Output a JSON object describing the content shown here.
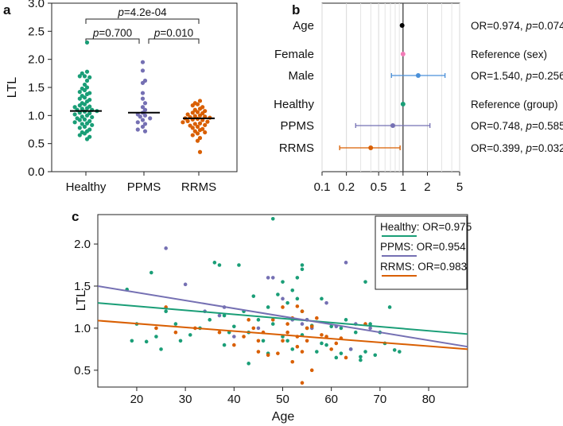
{
  "colors": {
    "healthy": "#1a9e77",
    "ppms": "#7570b3",
    "rrms": "#d95f02",
    "female": "#f27bb7",
    "male": "#4a90d9",
    "black": "#000000"
  },
  "chart_data": [
    {
      "panel": "a",
      "type": "scatter",
      "ylabel": "LTL",
      "ylim": [
        0,
        3.0
      ],
      "yticks": [
        "0.0",
        "0.5",
        "1.0",
        "1.5",
        "2.0",
        "2.5",
        "3.0"
      ],
      "categories": [
        "Healthy",
        "PPMS",
        "RRMS"
      ],
      "medians": [
        1.08,
        1.05,
        0.95
      ],
      "annotations": [
        {
          "between": [
            "Healthy",
            "RRMS"
          ],
          "p_prefix": "p",
          "p_value": "=4.2e-04"
        },
        {
          "between": [
            "Healthy",
            "PPMS"
          ],
          "p_prefix": "p",
          "p_value": "=0.700"
        },
        {
          "between": [
            "PPMS",
            "RRMS"
          ],
          "p_prefix": "p",
          "p_value": "=0.010"
        }
      ],
      "series": [
        {
          "name": "Healthy",
          "values": [
            2.3,
            1.78,
            1.75,
            1.7,
            1.7,
            1.68,
            1.62,
            1.55,
            1.5,
            1.48,
            1.45,
            1.42,
            1.4,
            1.38,
            1.35,
            1.32,
            1.3,
            1.28,
            1.25,
            1.22,
            1.2,
            1.18,
            1.16,
            1.15,
            1.13,
            1.12,
            1.1,
            1.1,
            1.08,
            1.07,
            1.05,
            1.04,
            1.02,
            1.0,
            0.98,
            0.97,
            0.95,
            0.93,
            0.92,
            0.9,
            0.88,
            0.86,
            0.85,
            0.83,
            0.8,
            0.78,
            0.75,
            0.72,
            0.7,
            0.68,
            0.65,
            0.62,
            0.58
          ]
        },
        {
          "name": "PPMS",
          "values": [
            1.95,
            1.8,
            1.62,
            1.58,
            1.4,
            1.3,
            1.22,
            1.15,
            1.1,
            1.05,
            1.02,
            1.0,
            0.98,
            0.95,
            0.92,
            0.88,
            0.85,
            0.8,
            0.75,
            0.72
          ]
        },
        {
          "name": "RRMS",
          "values": [
            1.26,
            1.22,
            1.2,
            1.18,
            1.15,
            1.12,
            1.1,
            1.08,
            1.06,
            1.05,
            1.04,
            1.02,
            1.0,
            0.99,
            0.98,
            0.97,
            0.96,
            0.95,
            0.94,
            0.93,
            0.92,
            0.9,
            0.89,
            0.88,
            0.86,
            0.85,
            0.83,
            0.82,
            0.8,
            0.78,
            0.76,
            0.74,
            0.72,
            0.7,
            0.68,
            0.65,
            0.6,
            0.55,
            0.35
          ]
        }
      ]
    },
    {
      "panel": "b",
      "type": "forest",
      "xscale": "log",
      "xlim": [
        0.1,
        5
      ],
      "xticks": [
        0.1,
        0.2,
        0.5,
        1,
        2,
        5
      ],
      "xtick_labels": [
        "0.1",
        "0.2",
        "0.5",
        "1",
        "2",
        "5"
      ],
      "reference_line": 1,
      "rows": [
        {
          "label": "Age",
          "or": 0.974,
          "lo": 0.974,
          "hi": 0.974,
          "color_key": "black",
          "text_prefix": "OR=0.974, ",
          "p_prefix": "p",
          "p_value": "=0.074"
        },
        {
          "label": "Female",
          "or": 1.0,
          "lo": 1.0,
          "hi": 1.0,
          "color_key": "female",
          "text": "Reference (sex)"
        },
        {
          "label": "Male",
          "or": 1.54,
          "lo": 0.72,
          "hi": 3.3,
          "color_key": "male",
          "text_prefix": "OR=1.540, ",
          "p_prefix": "p",
          "p_value": "=0.256"
        },
        {
          "label": "Healthy",
          "or": 1.0,
          "lo": 1.0,
          "hi": 1.0,
          "color_key": "healthy",
          "text": "Reference (group)"
        },
        {
          "label": "PPMS",
          "or": 0.748,
          "lo": 0.26,
          "hi": 2.15,
          "color_key": "ppms",
          "text_prefix": "OR=0.748, ",
          "p_prefix": "p",
          "p_value": "=0.585"
        },
        {
          "label": "RRMS",
          "or": 0.399,
          "lo": 0.165,
          "hi": 0.92,
          "color_key": "rrms",
          "text_prefix": "OR=0.399, ",
          "p_prefix": "p",
          "p_value": "=0.032"
        }
      ]
    },
    {
      "panel": "c",
      "type": "scatter",
      "xlabel": "Age",
      "ylabel": "LTL",
      "xlim": [
        12,
        88
      ],
      "ylim": [
        0.3,
        2.35
      ],
      "xticks": [
        20,
        30,
        40,
        50,
        60,
        70,
        80
      ],
      "yticks": [
        0.5,
        1.0,
        1.5,
        2.0
      ],
      "ytick_labels": [
        "0.5",
        "1.0",
        "1.5",
        "2.0"
      ],
      "legend": [
        {
          "name": "Healthy",
          "text": ": OR=0.975"
        },
        {
          "name": "PPMS",
          "text": ": OR=0.954"
        },
        {
          "name": "RRMS",
          "text": ": OR=0.983"
        }
      ],
      "fits": [
        {
          "name": "Healthy",
          "x": [
            12,
            88
          ],
          "y": [
            1.3,
            0.93
          ]
        },
        {
          "name": "PPMS",
          "x": [
            12,
            88
          ],
          "y": [
            1.5,
            0.78
          ]
        },
        {
          "name": "RRMS",
          "x": [
            12,
            88
          ],
          "y": [
            1.09,
            0.75
          ]
        }
      ],
      "series": [
        {
          "name": "Healthy",
          "x": [
            18,
            19,
            20,
            22,
            23,
            24,
            25,
            26,
            28,
            29,
            31,
            33,
            35,
            36,
            37,
            38,
            39,
            40,
            41,
            42,
            43,
            44,
            45,
            46,
            47,
            48,
            48,
            49,
            50,
            50,
            51,
            52,
            52,
            53,
            53,
            54,
            54,
            54,
            55,
            55,
            56,
            57,
            58,
            59,
            60,
            61,
            62,
            63,
            64,
            65,
            66,
            67,
            67,
            68,
            69,
            70,
            71,
            72,
            73,
            74,
            38,
            43,
            47,
            51,
            54,
            58,
            62,
            66
          ],
          "y": [
            1.46,
            0.85,
            1.05,
            0.84,
            1.66,
            0.9,
            0.75,
            1.2,
            1.05,
            0.85,
            0.92,
            1.0,
            1.1,
            1.78,
            1.75,
            1.15,
            0.95,
            1.02,
            1.75,
            1.2,
            0.58,
            1.38,
            1.1,
            0.85,
            1.25,
            1.05,
            2.3,
            1.4,
            1.55,
            0.9,
            1.3,
            1.45,
            0.75,
            1.6,
            1.35,
            1.75,
            1.7,
            1.2,
            1.1,
            1.0,
            1.03,
            0.72,
            1.35,
            0.8,
            1.02,
            0.65,
            1.0,
            1.1,
            0.75,
            0.95,
            0.62,
            1.55,
            0.72,
            1.05,
            0.68,
            0.95,
            0.82,
            1.25,
            0.74,
            0.72,
            0.8,
            0.95,
            0.7,
            0.85,
            0.92,
            0.82,
            0.7,
            0.66
          ]
        },
        {
          "name": "PPMS",
          "x": [
            26,
            30,
            34,
            37,
            40,
            45,
            47,
            48,
            50,
            52,
            54,
            56,
            59,
            61,
            63,
            64,
            65,
            68,
            38,
            55
          ],
          "y": [
            1.95,
            1.52,
            1.2,
            1.15,
            0.9,
            1.0,
            1.6,
            1.6,
            1.35,
            1.1,
            1.05,
            1.0,
            1.3,
            1.02,
            1.78,
            0.75,
            1.05,
            1.0,
            1.25,
            1.1
          ]
        },
        {
          "name": "RRMS",
          "x": [
            24,
            26,
            28,
            32,
            37,
            40,
            42,
            43,
            44,
            45,
            45,
            46,
            47,
            48,
            49,
            50,
            50,
            51,
            51,
            52,
            52,
            53,
            53,
            53,
            54,
            54,
            55,
            55,
            56,
            56,
            57,
            58,
            59,
            60,
            61,
            62,
            63,
            67,
            54
          ],
          "y": [
            1.0,
            1.25,
            0.95,
            1.0,
            0.95,
            0.8,
            0.9,
            1.1,
            1.0,
            0.85,
            0.72,
            0.95,
            0.68,
            1.1,
            0.7,
            1.25,
            0.85,
            1.05,
            0.95,
            1.12,
            0.6,
            1.26,
            0.9,
            0.78,
            1.2,
            0.72,
            1.0,
            0.85,
            1.02,
            0.5,
            1.12,
            0.92,
            0.9,
            0.75,
            0.82,
            0.88,
            0.65,
            1.05,
            0.35
          ]
        }
      ]
    }
  ]
}
